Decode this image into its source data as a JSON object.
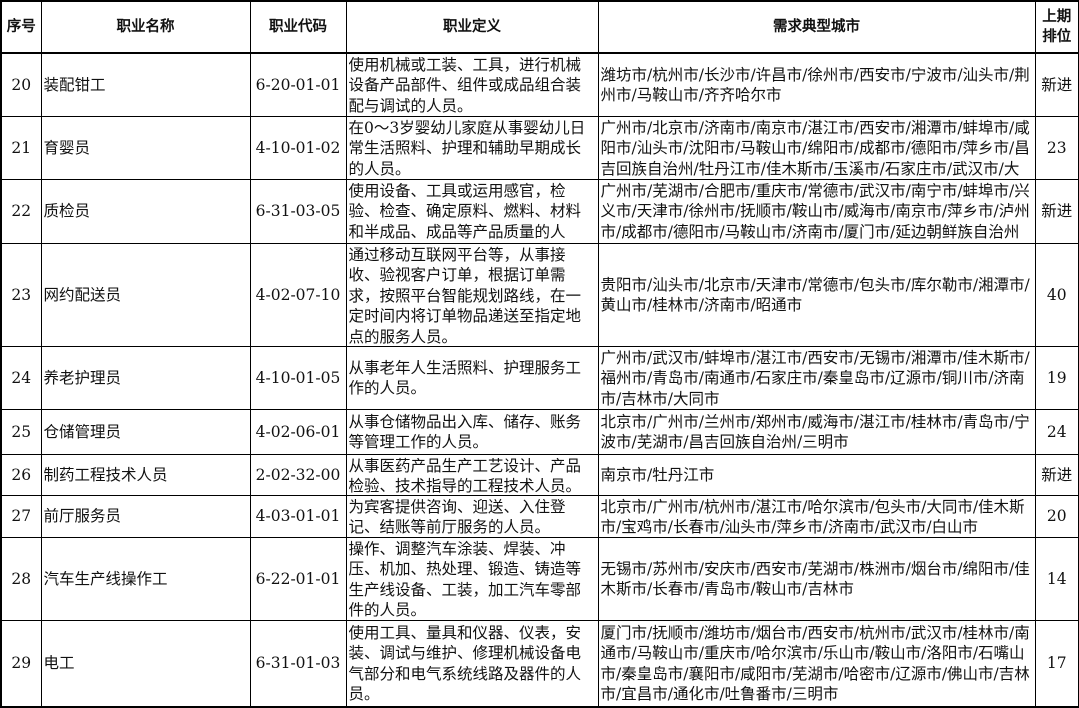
{
  "headers": [
    "序号",
    "职业名称",
    "职业代码",
    "职业定义",
    "需求典型城市",
    "上期排位"
  ],
  "rows": [
    {
      "no": "20",
      "name": "装配钳工",
      "code": "6-20-01-01",
      "def": "使用机械或工装、工具，进行机械设备产品部件、组件或成品组合装配与调试的人员。",
      "cities": "潍坊市/杭州市/长沙市/许昌市/徐州市/西安市/宁波市/汕头市/荆州市/马鞍山市/齐齐哈尔市",
      "prev": "新进"
    },
    {
      "no": "21",
      "name": "育婴员",
      "code": "4-10-01-02",
      "def": "在0～3岁婴幼儿家庭从事婴幼儿日常生活照料、护理和辅助早期成长的人员。",
      "cities": "广州市/北京市/济南市/南京市/湛江市/西安市/湘潭市/蚌埠市/咸阳市/汕头市/沈阳市/马鞍山市/绵阳市/成都市/德阳市/萍乡市/昌吉回族自治州/牡丹江市/佳木斯市/玉溪市/石家庄市/武汉市/大",
      "prev": "23"
    },
    {
      "no": "22",
      "name": "质检员",
      "code": "6-31-03-05",
      "def": "使用设备、工具或运用感官，检验、检查、确定原料、燃料、材料和半成品、成品等产品质量的人员。",
      "cities": "广州市/芜湖市/合肥市/重庆市/常德市/武汉市/南宁市/蚌埠市/兴义市/天津市/徐州市/抚顺市/鞍山市/威海市/南京市/萍乡市/泸州市/成都市/德阳市/马鞍山市/济南市/厦门市/延边朝鲜族自治州",
      "prev": "新进"
    },
    {
      "no": "23",
      "name": "网约配送员",
      "code": "4-02-07-10",
      "def": "通过移动互联网平台等，从事接收、验视客户订单，根据订单需求，按照平台智能规划路线，在一定时间内将订单物品递送至指定地点的服务人员。",
      "cities": "贵阳市/汕头市/北京市/天津市/常德市/包头市/库尔勒市/湘潭市/黄山市/桂林市/济南市/昭通市",
      "prev": "40"
    },
    {
      "no": "24",
      "name": "养老护理员",
      "code": "4-10-01-05",
      "def": "从事老年人生活照料、护理服务工作的人员。",
      "cities": "广州市/武汉市/蚌埠市/湛江市/西安市/无锡市/湘潭市/佳木斯市/福州市/青岛市/南通市/石家庄市/秦皇岛市/辽源市/铜川市/济南市/吉林市/大同市",
      "prev": "19"
    },
    {
      "no": "25",
      "name": "仓储管理员",
      "code": "4-02-06-01",
      "def": "从事仓储物品出入库、储存、账务等管理工作的人员。",
      "cities": "北京市/广州市/兰州市/郑州市/威海市/湛江市/桂林市/青岛市/宁波市/芜湖市/昌吉回族自治州/三明市",
      "prev": "24"
    },
    {
      "no": "26",
      "name": "制药工程技术人员",
      "code": "2-02-32-00",
      "def": "从事医药产品生产工艺设计、产品检验、技术指导的工程技术人员。",
      "cities": "南京市/牡丹江市",
      "prev": "新进"
    },
    {
      "no": "27",
      "name": "前厅服务员",
      "code": "4-03-01-01",
      "def": "为宾客提供咨询、迎送、入住登记、结账等前厅服务的人员。",
      "cities": "北京市/广州市/杭州市/湛江市/哈尔滨市/包头市/大同市/佳木斯市/宝鸡市/长春市/汕头市/萍乡市/济南市/武汉市/白山市",
      "prev": "20"
    },
    {
      "no": "28",
      "name": "汽车生产线操作工",
      "code": "6-22-01-01",
      "def": "操作、调整汽车涂装、焊装、冲压、机加、热处理、锻造、铸造等生产线设备、工装，加工汽车零部件的人员。",
      "cities": "无锡市/苏州市/安庆市/西安市/芜湖市/株洲市/烟台市/绵阳市/佳木斯市/长春市/青岛市/鞍山市/吉林市",
      "prev": "14"
    },
    {
      "no": "29",
      "name": "电工",
      "code": "6-31-01-03",
      "def": "使用工具、量具和仪器、仪表，安装、调试与维护、修理机械设备电气部分和电气系统线路及器件的人员。",
      "cities": "厦门市/抚顺市/潍坊市/烟台市/西安市/杭州市/武汉市/桂林市/南通市/马鞍山市/重庆市/哈尔滨市/乐山市/鞍山市/洛阳市/石嘴山市/秦皇岛市/襄阳市/咸阳市/芜湖市/哈密市/辽源市/佛山市/吉林市/宜昌市/通化市/吐鲁番市/三明市",
      "prev": "17"
    }
  ]
}
